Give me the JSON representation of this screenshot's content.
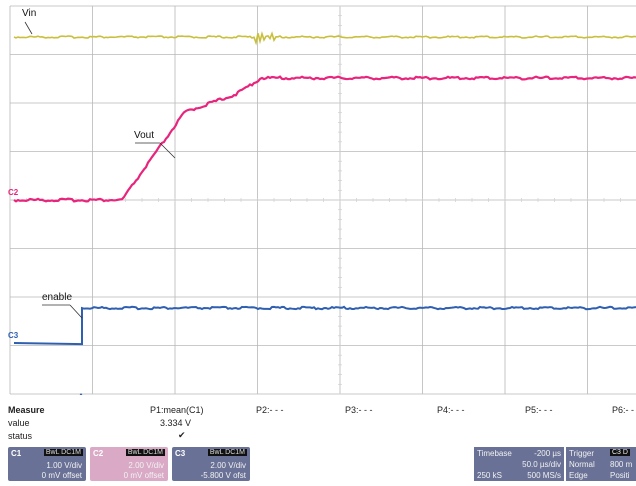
{
  "waveform": {
    "labels": {
      "vin": "Vin",
      "vout": "Vout",
      "enable": "enable"
    },
    "channel_markers": {
      "c2": "C2",
      "c3": "C3"
    },
    "colors": {
      "vin": "#c9bf3c",
      "vout": "#e8257c",
      "enable": "#2f5fb0",
      "grid": "#b8b8b8",
      "minor": "#cfcfcf"
    }
  },
  "measure": {
    "headers": {
      "title": "Measure",
      "p1": "P1:mean(C1)",
      "p2": "P2:- - -",
      "p3": "P3:- - -",
      "p4": "P4:- - -",
      "p5": "P5:- - -",
      "p6": "P6:- -"
    },
    "rows": {
      "value_label": "value",
      "status_label": "status",
      "p1_value": "3.334 V",
      "p1_status": "✔"
    }
  },
  "channels": [
    {
      "id": "C1",
      "coupling": "BwL DC1M",
      "vdiv": "1.00 V/div",
      "offset": "0 mV offset",
      "color": "#c9bf3c",
      "bg": "#6a7196"
    },
    {
      "id": "C2",
      "coupling": "BwL DC1M",
      "vdiv": "2.00 V/div",
      "offset": "0 mV offset",
      "color": "#e8257c",
      "bg": "#d9a9c6"
    },
    {
      "id": "C3",
      "coupling": "BwL DC1M",
      "vdiv": "2.00 V/div",
      "offset": "-5.800 V ofst",
      "color": "#2f5fb0",
      "bg": "#6a7196"
    }
  ],
  "timebase": {
    "label": "Timebase",
    "delay": "-200 µs",
    "tdiv": "50.0 µs/div",
    "samples": "250 kS",
    "rate": "500 MS/s"
  },
  "trigger": {
    "label": "Trigger",
    "src": "C3 D",
    "mode": "Normal",
    "level": "800 m",
    "type": "Edge",
    "slope": "Positi"
  }
}
